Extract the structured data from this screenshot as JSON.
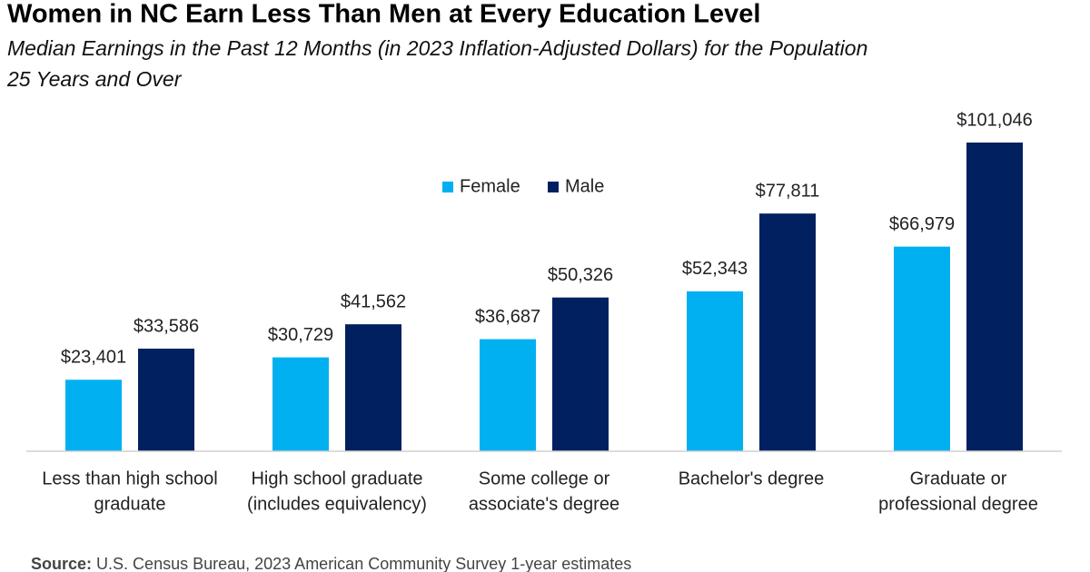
{
  "chart_data": {
    "type": "bar",
    "title": "Women in NC Earn Less Than Men at Every Education Level",
    "subtitle": [
      "Median Earnings in the Past 12 Months (in 2023 Inflation-Adjusted Dollars) for the Population",
      "25 Years and Over"
    ],
    "categories": [
      [
        "Less than high school",
        "graduate"
      ],
      [
        "High school graduate",
        "(includes equivalency)"
      ],
      [
        "Some college or",
        "associate's degree"
      ],
      [
        "Bachelor's degree"
      ],
      [
        "Graduate or",
        "professional degree"
      ]
    ],
    "series": [
      {
        "name": "Female",
        "color": "#00b0f0",
        "values": [
          23401,
          30729,
          36687,
          52343,
          66979
        ],
        "value_labels": [
          "$23,401",
          "$30,729",
          "$36,687",
          "$52,343",
          "$66,979"
        ]
      },
      {
        "name": "Male",
        "color": "#002060",
        "values": [
          33586,
          41562,
          50326,
          77811,
          101046
        ],
        "value_labels": [
          "$33,586",
          "$41,562",
          "$50,326",
          "$77,811",
          "$101,046"
        ]
      }
    ],
    "source_label": "Source:",
    "source": "U.S. Census Bureau, 2023 American Community Survey 1-year estimates"
  }
}
